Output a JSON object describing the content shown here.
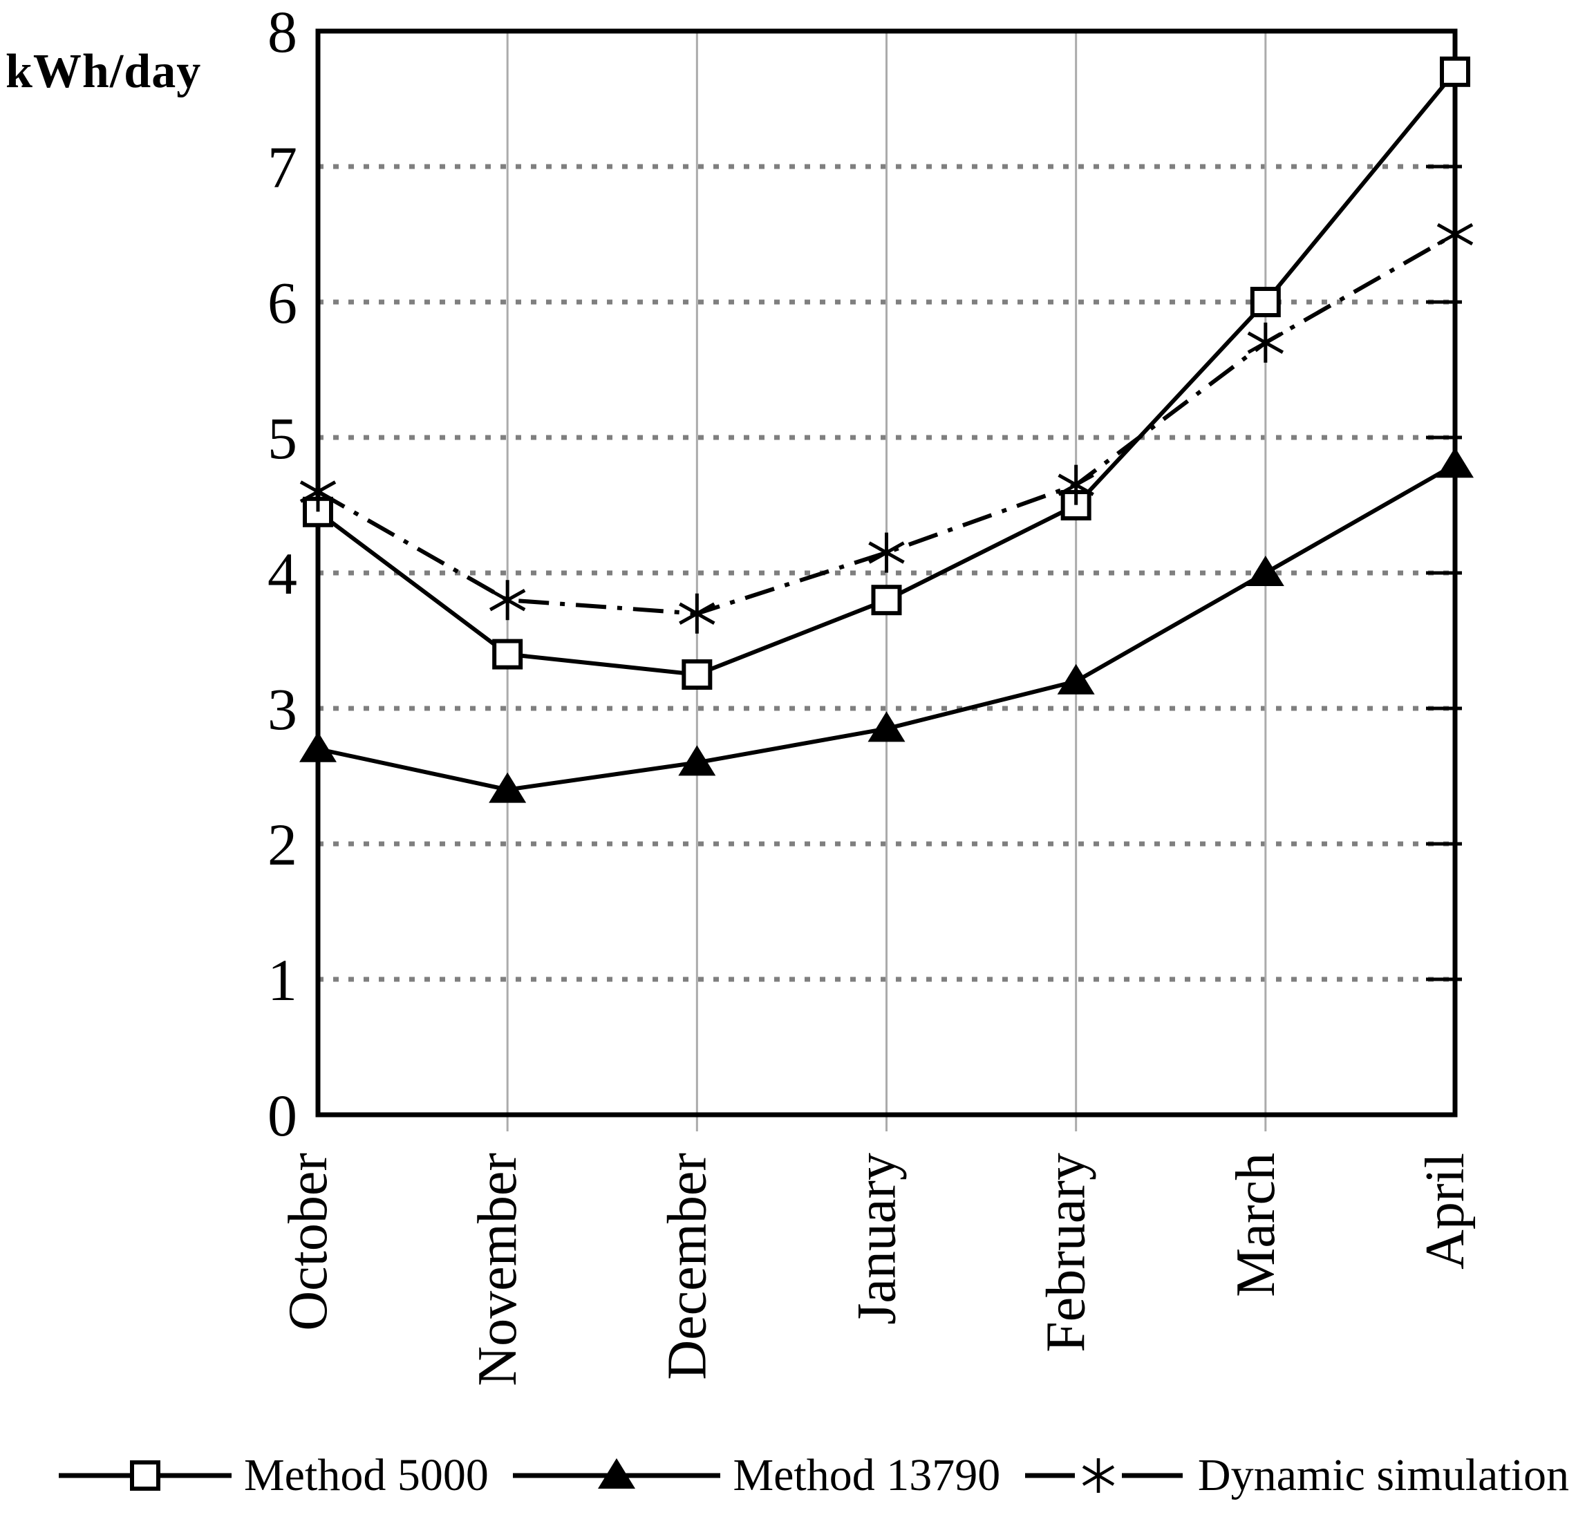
{
  "figure": {
    "background": "#ffffff"
  },
  "chart_data": {
    "type": "line",
    "title": "",
    "xlabel": "",
    "ylabel": "kWh/day",
    "categories": [
      "October",
      "November",
      "December",
      "January",
      "February",
      "March",
      "April"
    ],
    "series": [
      {
        "name": "Method 5000",
        "marker": "open-square",
        "line_style": "solid",
        "values": [
          4.45,
          3.4,
          3.25,
          3.8,
          4.5,
          6.0,
          7.7
        ]
      },
      {
        "name": "Method 13790",
        "marker": "filled-triangle",
        "line_style": "solid",
        "values": [
          2.7,
          2.4,
          2.6,
          2.85,
          3.2,
          4.0,
          4.8
        ]
      },
      {
        "name": "Dynamic simulation",
        "marker": "asterisk",
        "line_style": "dash-dot",
        "values": [
          4.6,
          3.8,
          3.7,
          4.15,
          4.65,
          5.7,
          6.5
        ]
      }
    ],
    "ylim": [
      0,
      8
    ],
    "y_ticks": [
      0,
      1,
      2,
      3,
      4,
      5,
      6,
      7,
      8
    ],
    "grid": {
      "horizontal": "dotted",
      "vertical": "solid-light"
    },
    "legend_position": "bottom",
    "colors": {
      "series_line": "#000000",
      "grid_dotted": "#7f7f7f",
      "grid_vertical": "#ababab",
      "frame": "#000000",
      "background": "#ffffff"
    }
  }
}
